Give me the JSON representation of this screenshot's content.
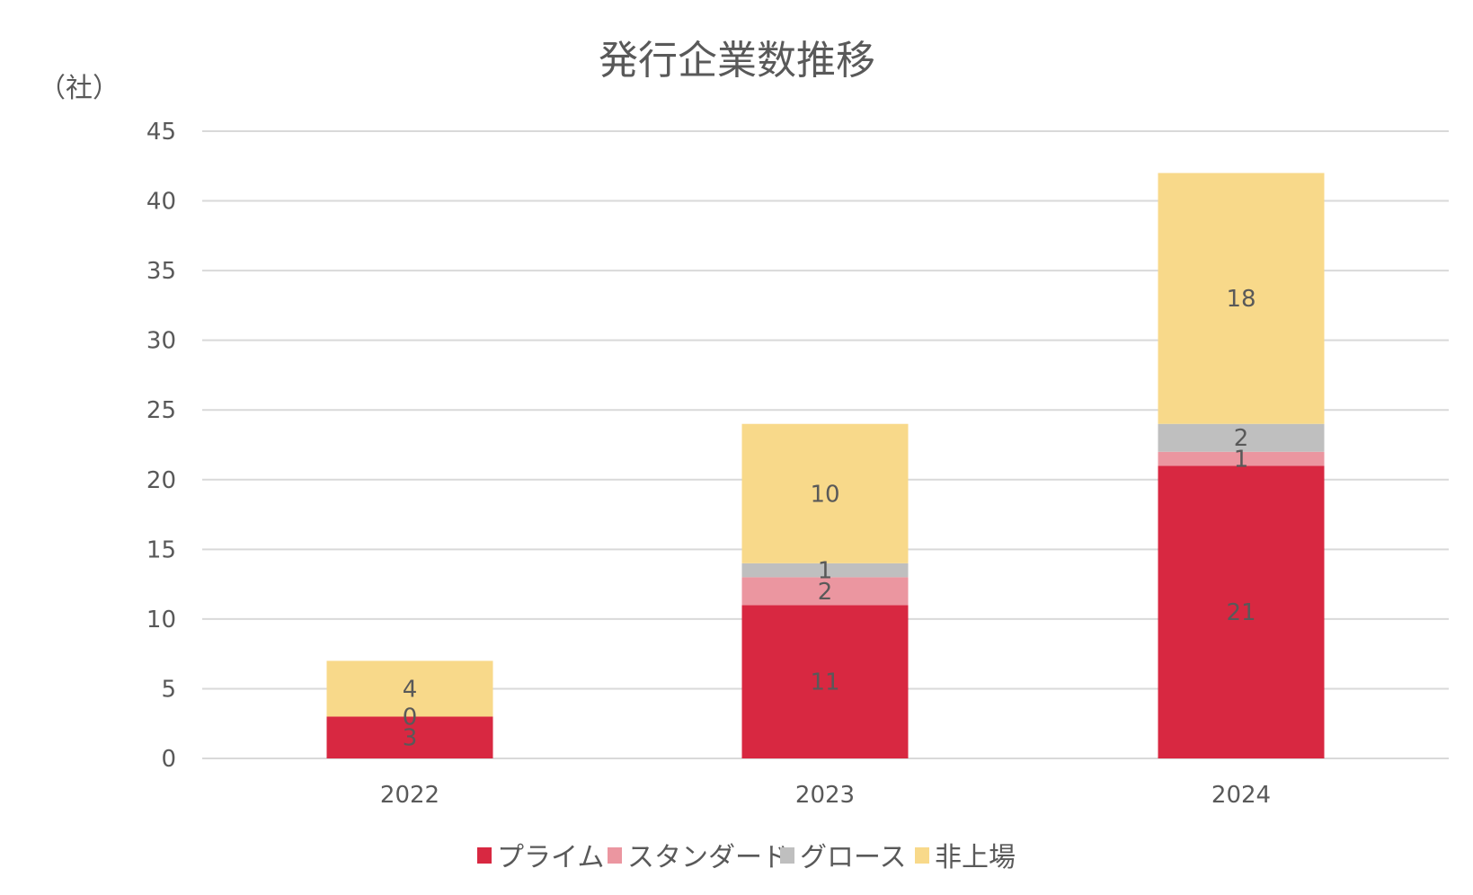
{
  "chart_data": {
    "type": "bar",
    "stacked": true,
    "title": "発行企業数推移",
    "ylabel": "（社）",
    "xlabel": "",
    "categories": [
      "2022",
      "2023",
      "2024"
    ],
    "ylim": [
      0,
      45
    ],
    "yticks": [
      0,
      5,
      10,
      15,
      20,
      25,
      30,
      35,
      40,
      45
    ],
    "grid": true,
    "legend_position": "bottom",
    "series": [
      {
        "name": "プライム",
        "values": [
          3,
          11,
          21
        ],
        "color": "#D82841"
      },
      {
        "name": "スタンダード",
        "values": [
          0,
          2,
          1
        ],
        "color": "#EB96A0"
      },
      {
        "name": "グロース",
        "values": [
          0,
          1,
          2
        ],
        "color": "#BFBFBF"
      },
      {
        "name": "非上場",
        "values": [
          4,
          10,
          18
        ],
        "color": "#F8D98A"
      }
    ],
    "data_labels": [
      [
        "3",
        "0",
        null,
        "4"
      ],
      [
        "11",
        "2",
        "1",
        "10"
      ],
      [
        "21",
        "1",
        "2",
        "18"
      ]
    ]
  }
}
